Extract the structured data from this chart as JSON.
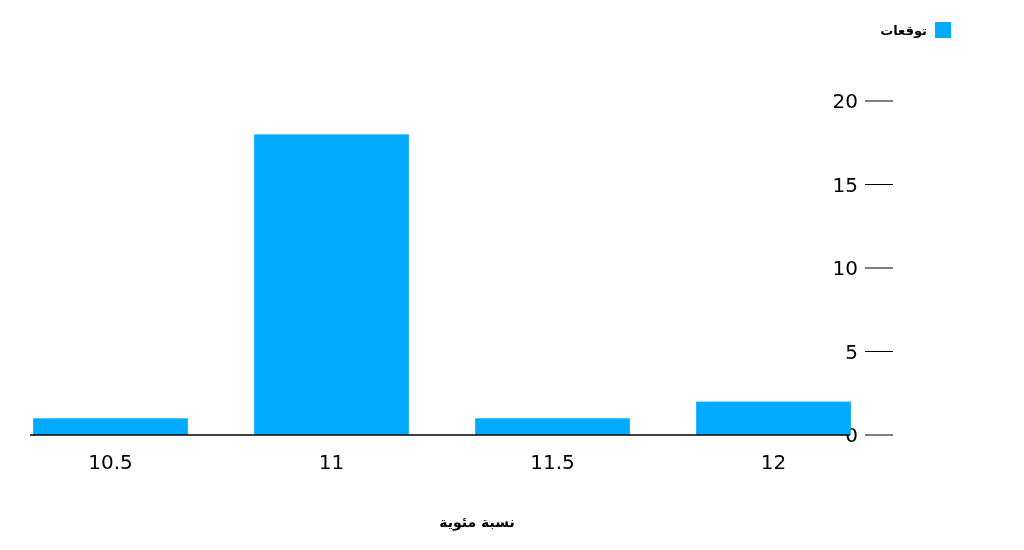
{
  "chart_data": {
    "type": "bar",
    "categories": [
      "10.5",
      "11",
      "11.5",
      "12"
    ],
    "series": [
      {
        "name": "توقعات",
        "color": "#00aaff",
        "values": [
          1,
          18,
          1,
          2
        ]
      }
    ],
    "ylim": [
      0,
      20
    ],
    "yticks": [
      0,
      5,
      10,
      15,
      20
    ],
    "xlabel": "نسبة مئوية",
    "legend": "top right",
    "grid": false
  }
}
